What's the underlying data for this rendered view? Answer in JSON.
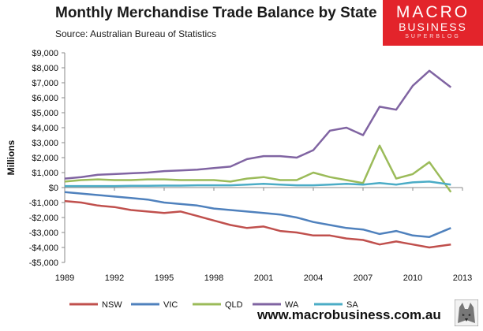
{
  "header": {
    "title": "Monthly Merchandise Trade Balance by State",
    "source": "Source:  Australian Bureau of Statistics"
  },
  "logo": {
    "line1": "MACRO",
    "line2": "BUSINESS",
    "line3": "SUPERBLOG"
  },
  "footer": {
    "url": "www.macrobusiness.com.au"
  },
  "colors": {
    "NSW": "#c0504d",
    "VIC": "#4f81bd",
    "QLD": "#9bbb59",
    "WA": "#8064a2",
    "SA": "#4bacc6"
  },
  "chart_data": {
    "type": "line",
    "title": "Monthly Merchandise Trade Balance by State",
    "xlabel": "",
    "ylabel": "Millions",
    "xlim": [
      1989,
      2013
    ],
    "ylim": [
      -5000,
      9000
    ],
    "x_ticks": [
      1989,
      1992,
      1995,
      1998,
      2001,
      2004,
      2007,
      2010,
      2013
    ],
    "x_tick_labels": [
      "1989",
      "1992",
      "1995",
      "1998",
      "2001",
      "2004",
      "2007",
      "2010",
      "2013"
    ],
    "y_ticks": [
      -5000,
      -4000,
      -3000,
      -2000,
      -1000,
      0,
      1000,
      2000,
      3000,
      4000,
      5000,
      6000,
      7000,
      8000,
      9000
    ],
    "y_tick_labels": [
      "-$5,000",
      "-$4,000",
      "-$3,000",
      "-$2,000",
      "-$1,000",
      "$0",
      "$1,000",
      "$2,000",
      "$3,000",
      "$4,000",
      "$5,000",
      "$6,000",
      "$7,000",
      "$8,000",
      "$9,000"
    ],
    "grid": false,
    "legend": "bottom",
    "series": [
      {
        "name": "NSW",
        "color": "#c0504d",
        "x": [
          1989,
          1990,
          1991,
          1992,
          1993,
          1994,
          1995,
          1996,
          1997,
          1998,
          1999,
          2000,
          2001,
          2002,
          2003,
          2004,
          2005,
          2006,
          2007,
          2008,
          2009,
          2010,
          2011,
          2012.3
        ],
        "values": [
          -900,
          -1000,
          -1200,
          -1300,
          -1500,
          -1600,
          -1700,
          -1600,
          -1900,
          -2200,
          -2500,
          -2700,
          -2600,
          -2900,
          -3000,
          -3200,
          -3200,
          -3400,
          -3500,
          -3800,
          -3600,
          -3800,
          -4000,
          -3800
        ]
      },
      {
        "name": "VIC",
        "color": "#4f81bd",
        "x": [
          1989,
          1990,
          1991,
          1992,
          1993,
          1994,
          1995,
          1996,
          1997,
          1998,
          1999,
          2000,
          2001,
          2002,
          2003,
          2004,
          2005,
          2006,
          2007,
          2008,
          2009,
          2010,
          2011,
          2012.3
        ],
        "values": [
          -300,
          -400,
          -500,
          -600,
          -700,
          -800,
          -1000,
          -1100,
          -1200,
          -1400,
          -1500,
          -1600,
          -1700,
          -1800,
          -2000,
          -2300,
          -2500,
          -2700,
          -2800,
          -3100,
          -2900,
          -3200,
          -3300,
          -2700
        ]
      },
      {
        "name": "QLD",
        "color": "#9bbb59",
        "x": [
          1989,
          1990,
          1991,
          1992,
          1993,
          1994,
          1995,
          1996,
          1997,
          1998,
          1999,
          2000,
          2001,
          2002,
          2003,
          2004,
          2005,
          2006,
          2007,
          2008,
          2009,
          2010,
          2011,
          2012.3
        ],
        "values": [
          400,
          500,
          550,
          500,
          500,
          550,
          550,
          500,
          500,
          500,
          400,
          600,
          700,
          500,
          500,
          1000,
          700,
          500,
          300,
          2800,
          600,
          900,
          1700,
          -300
        ]
      },
      {
        "name": "WA",
        "color": "#8064a2",
        "x": [
          1989,
          1990,
          1991,
          1992,
          1993,
          1994,
          1995,
          1996,
          1997,
          1998,
          1999,
          2000,
          2001,
          2002,
          2003,
          2004,
          2005,
          2006,
          2007,
          2008,
          2009,
          2010,
          2011,
          2012.3
        ],
        "values": [
          600,
          700,
          850,
          900,
          950,
          1000,
          1100,
          1150,
          1200,
          1300,
          1400,
          1900,
          2100,
          2100,
          2000,
          2500,
          3800,
          4000,
          3500,
          5400,
          5200,
          6800,
          7800,
          6700
        ]
      },
      {
        "name": "SA",
        "color": "#4bacc6",
        "x": [
          1989,
          1990,
          1991,
          1992,
          1993,
          1994,
          1995,
          1996,
          1997,
          1998,
          1999,
          2000,
          2001,
          2002,
          2003,
          2004,
          2005,
          2006,
          2007,
          2008,
          2009,
          2010,
          2011,
          2012.3
        ],
        "values": [
          100,
          100,
          100,
          100,
          120,
          120,
          130,
          130,
          150,
          150,
          150,
          200,
          250,
          200,
          150,
          150,
          200,
          250,
          200,
          300,
          200,
          350,
          400,
          200
        ]
      }
    ]
  }
}
